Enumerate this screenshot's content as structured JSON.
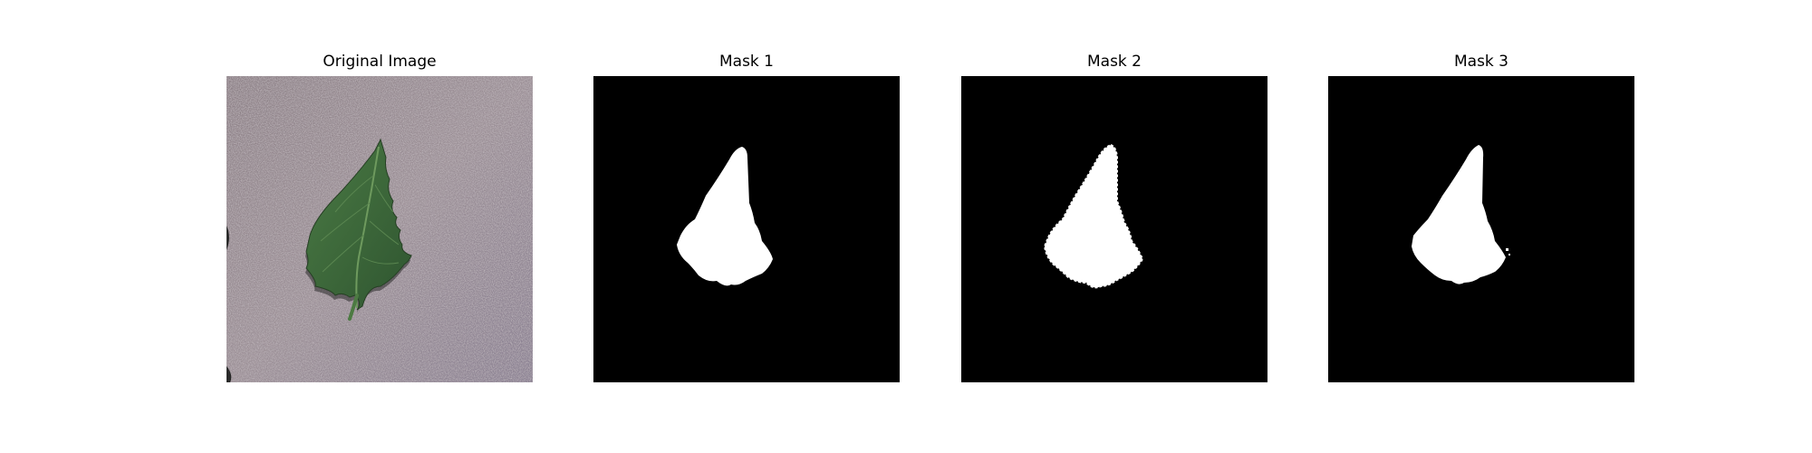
{
  "figure": {
    "panels": [
      {
        "title": "Original Image",
        "kind": "photo",
        "subject": "green-leaf-on-mauve-speckled-background"
      },
      {
        "title": "Mask 1",
        "kind": "binary-mask"
      },
      {
        "title": "Mask 2",
        "kind": "binary-mask"
      },
      {
        "title": "Mask 3",
        "kind": "binary-mask"
      }
    ]
  },
  "colors": {
    "page_background": "#ffffff",
    "photo_background": "#93878f",
    "leaf": "#3e6a3a",
    "leaf_dark": "#2c4f2a",
    "mask_background": "#000000",
    "mask_foreground": "#ffffff"
  }
}
